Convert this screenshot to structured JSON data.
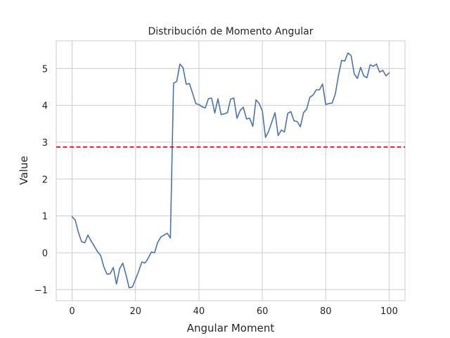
{
  "chart_data": {
    "type": "line",
    "title": "Distribución de Momento Angular",
    "xlabel": "Angular Moment",
    "ylabel": "Value",
    "xlim": [
      -5,
      105
    ],
    "ylim": [
      -1.3,
      5.75
    ],
    "xticks": [
      0,
      20,
      40,
      60,
      80,
      100
    ],
    "yticks": [
      -1,
      0,
      1,
      2,
      3,
      4,
      5
    ],
    "ytick_labels": [
      "−1",
      "0",
      "1",
      "2",
      "3",
      "4",
      "5"
    ],
    "grid": true,
    "series": [
      {
        "color": "#4c72b0",
        "x": [
          0,
          1,
          2,
          3,
          4,
          5,
          6,
          7,
          8,
          9,
          10,
          11,
          12,
          13,
          14,
          15,
          16,
          17,
          18,
          19,
          20,
          21,
          22,
          23,
          24,
          25,
          26,
          27,
          28,
          29,
          30,
          31,
          32,
          33,
          34,
          35,
          36,
          37,
          38,
          39,
          40,
          41,
          42,
          43,
          44,
          45,
          46,
          47,
          48,
          49,
          50,
          51,
          52,
          53,
          54,
          55,
          56,
          57,
          58,
          59,
          60,
          61,
          62,
          63,
          64,
          65,
          66,
          67,
          68,
          69,
          70,
          71,
          72,
          73,
          74,
          75,
          76,
          77,
          78,
          79,
          80,
          81,
          82,
          83,
          84,
          85,
          86,
          87,
          88,
          89,
          90,
          91,
          92,
          93,
          94,
          95,
          96,
          97,
          98,
          99,
          100
        ],
        "y": [
          0.98,
          0.88,
          0.55,
          0.3,
          0.27,
          0.48,
          0.32,
          0.18,
          0.03,
          -0.07,
          -0.38,
          -0.58,
          -0.57,
          -0.4,
          -0.85,
          -0.43,
          -0.28,
          -0.6,
          -0.95,
          -0.93,
          -0.72,
          -0.5,
          -0.25,
          -0.28,
          -0.15,
          0.02,
          0.0,
          0.28,
          0.43,
          0.48,
          0.53,
          0.4,
          4.6,
          4.65,
          5.12,
          5.02,
          4.57,
          4.59,
          4.33,
          4.05,
          4.02,
          3.96,
          3.93,
          4.18,
          4.2,
          3.79,
          4.18,
          3.75,
          3.77,
          3.8,
          4.17,
          4.2,
          3.65,
          3.86,
          3.95,
          3.63,
          3.65,
          3.43,
          4.15,
          4.05,
          3.85,
          3.13,
          3.3,
          3.55,
          3.8,
          3.18,
          3.33,
          3.28,
          3.78,
          3.83,
          3.58,
          3.56,
          3.42,
          3.8,
          3.9,
          4.22,
          4.28,
          4.42,
          4.42,
          4.58,
          4.02,
          4.05,
          4.06,
          4.3,
          4.8,
          5.22,
          5.2,
          5.42,
          5.35,
          4.85,
          4.73,
          5.03,
          4.8,
          4.75,
          5.1,
          5.06,
          5.12,
          4.9,
          4.95,
          4.8,
          4.88
        ]
      }
    ],
    "reference_line": {
      "y": 2.87,
      "color": "#e3001a",
      "style": "dashed"
    }
  }
}
